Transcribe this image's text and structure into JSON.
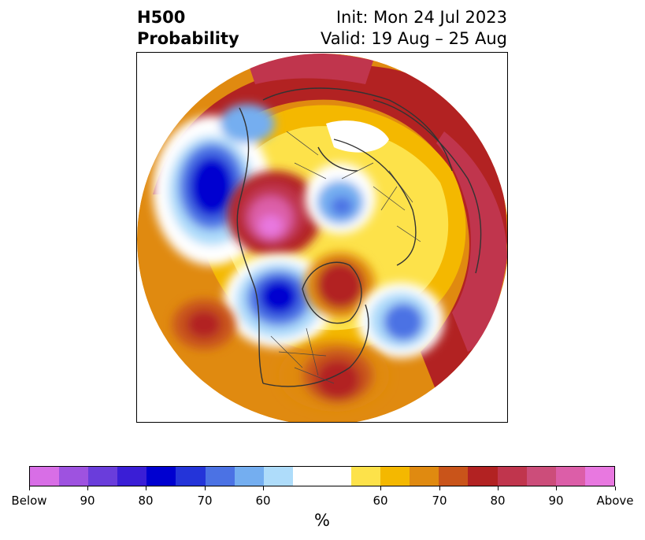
{
  "title": {
    "left_line1": "H500",
    "left_line2": "Probability",
    "right_line1": "Init: Mon 24 Jul 2023",
    "right_line2": "Valid: 19 Aug – 25 Aug"
  },
  "colorbar": {
    "colors": [
      "#d86ee6",
      "#9e52e0",
      "#6a3ddb",
      "#3a1ed6",
      "#0000d0",
      "#2434d9",
      "#4b72e4",
      "#74aef0",
      "#aedcfa",
      "#ffffff",
      "#ffffff",
      "#fde24a",
      "#f4b800",
      "#e08a10",
      "#c9541a",
      "#b22222",
      "#c0354d",
      "#cc4d7a",
      "#dc5ea8",
      "#e878e0"
    ],
    "ticks": [
      "Below",
      "90",
      "80",
      "70",
      "60",
      "60",
      "70",
      "80",
      "90",
      "Above"
    ],
    "unit": "%"
  }
}
